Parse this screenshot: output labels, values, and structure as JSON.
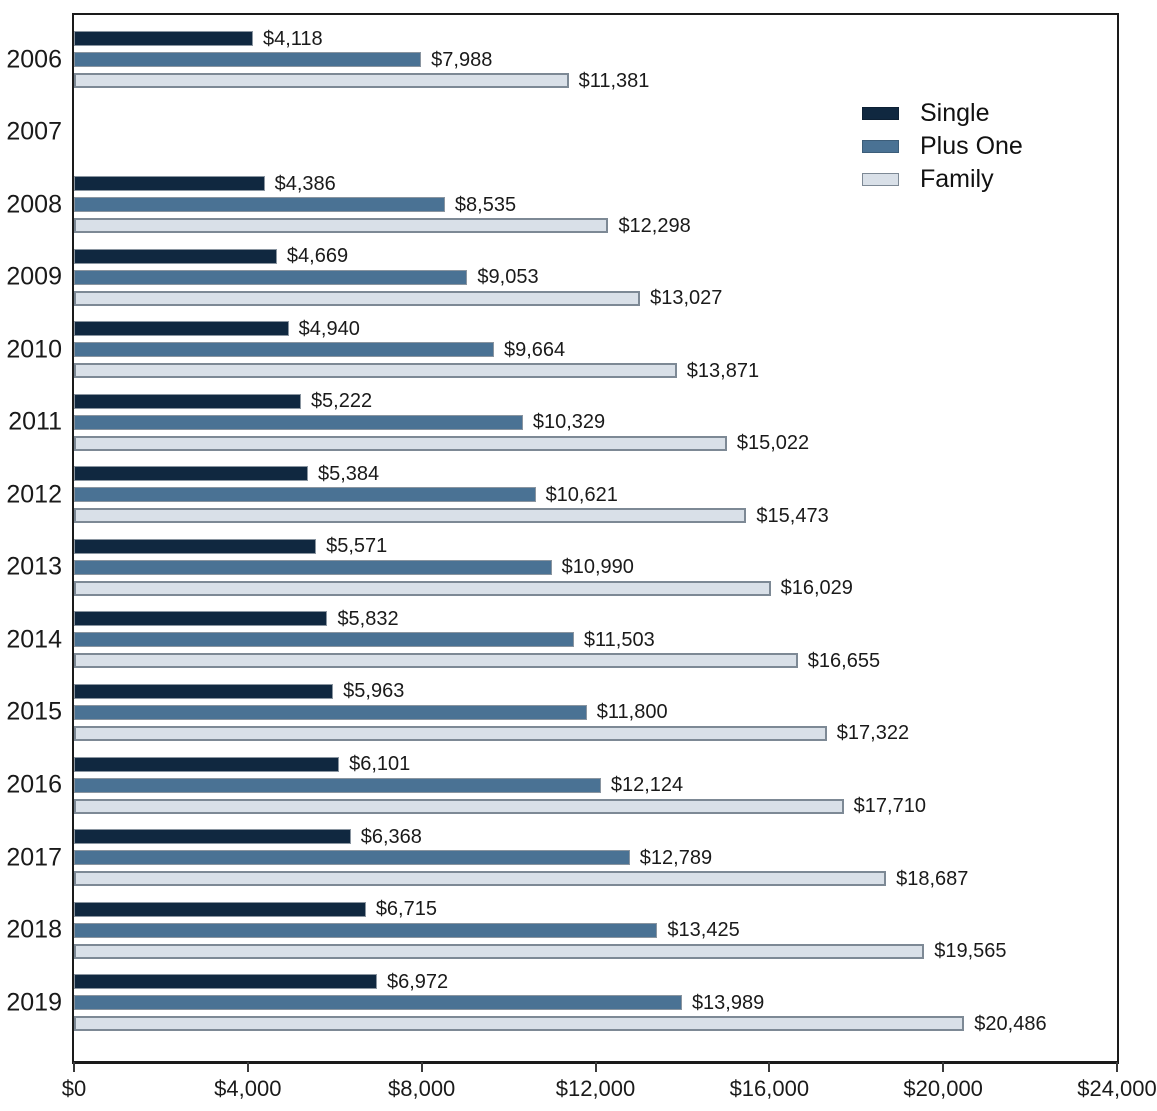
{
  "chart_data": {
    "type": "bar",
    "orientation": "horizontal",
    "title": "",
    "xlabel": "",
    "ylabel": "",
    "categories": [
      "2006",
      "2007",
      "2008",
      "2009",
      "2010",
      "2011",
      "2012",
      "2013",
      "2014",
      "2015",
      "2016",
      "2017",
      "2018",
      "2019"
    ],
    "series": [
      {
        "name": "Single",
        "color": "#102840",
        "values": [
          4118,
          null,
          4386,
          4669,
          4940,
          5222,
          5384,
          5571,
          5832,
          5963,
          6101,
          6368,
          6715,
          6972
        ],
        "labels": [
          "$4,118",
          "",
          "$4,386",
          "$4,669",
          "$4,940",
          "$5,222",
          "$5,384",
          "$5,571",
          "$5,832",
          "$5,963",
          "$6,101",
          "$6,368",
          "$6,715",
          "$6,972"
        ]
      },
      {
        "name": "Plus One",
        "color": "#4a7294",
        "values": [
          7988,
          null,
          8535,
          9053,
          9664,
          10329,
          10621,
          10990,
          11503,
          11800,
          12124,
          12789,
          13425,
          13989
        ],
        "labels": [
          "$7,988",
          "",
          "$8,535",
          "$9,053",
          "$9,664",
          "$10,329",
          "$10,621",
          "$10,990",
          "$11,503",
          "$11,800",
          "$12,124",
          "$12,789",
          "$13,425",
          "$13,989"
        ]
      },
      {
        "name": "Family",
        "color": "#d9e0e8",
        "values": [
          11381,
          null,
          12298,
          13027,
          13871,
          15022,
          15473,
          16029,
          16655,
          17322,
          17710,
          18687,
          19565,
          20486
        ],
        "labels": [
          "$11,381",
          "",
          "$12,298",
          "$13,027",
          "$13,871",
          "$15,022",
          "$15,473",
          "$16,029",
          "$16,655",
          "$17,322",
          "$17,710",
          "$18,687",
          "$19,565",
          "$20,486"
        ]
      }
    ],
    "xlim": [
      0,
      24000
    ],
    "x_ticks": {
      "values": [
        0,
        4000,
        8000,
        12000,
        16000,
        20000,
        24000
      ],
      "labels": [
        "$0",
        "$4,000",
        "$8,000",
        "$12,000",
        "$16,000",
        "$20,000",
        "$24,000"
      ]
    },
    "grid": false,
    "legend": {
      "position": "upper-right",
      "entries": [
        "Single",
        "Plus One",
        "Family"
      ]
    }
  }
}
